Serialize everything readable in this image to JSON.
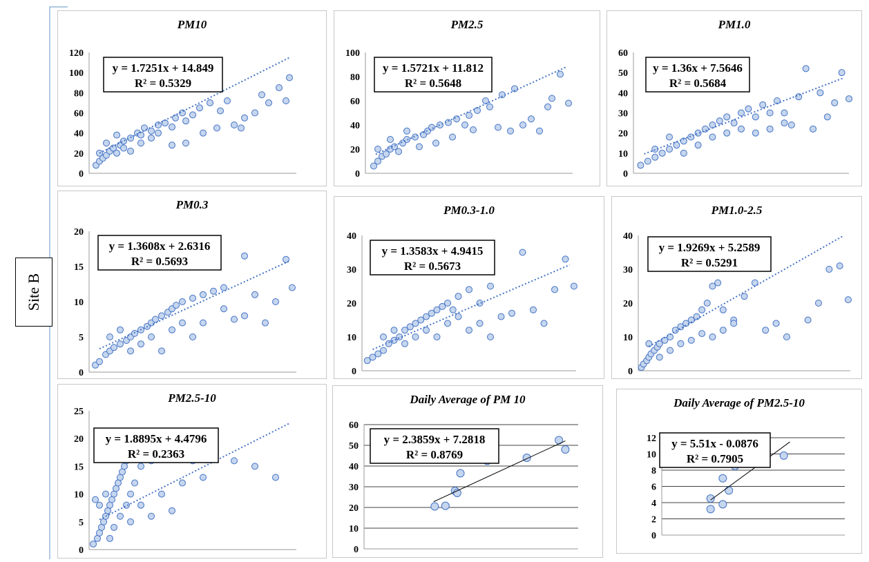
{
  "row_label": "Site B",
  "chart_data": [
    {
      "type": "scatter",
      "title": "PM10",
      "ylim": [
        0,
        120
      ],
      "yticks": [
        0,
        20,
        40,
        60,
        80,
        100,
        120
      ],
      "xlim": [
        0,
        60
      ],
      "equation": "y = 1.7251x + 14.849",
      "r2_text": "R² = 0.5329",
      "trendline": {
        "slope": 1.7251,
        "intercept": 14.849,
        "style": "dotted"
      },
      "points": [
        [
          2,
          8
        ],
        [
          3,
          12
        ],
        [
          4,
          15
        ],
        [
          5,
          18
        ],
        [
          6,
          22
        ],
        [
          7,
          25
        ],
        [
          8,
          20
        ],
        [
          9,
          28
        ],
        [
          10,
          32
        ],
        [
          12,
          35
        ],
        [
          14,
          40
        ],
        [
          15,
          38
        ],
        [
          16,
          45
        ],
        [
          18,
          42
        ],
        [
          20,
          48
        ],
        [
          22,
          50
        ],
        [
          24,
          46
        ],
        [
          25,
          55
        ],
        [
          27,
          60
        ],
        [
          28,
          52
        ],
        [
          30,
          58
        ],
        [
          32,
          65
        ],
        [
          35,
          70
        ],
        [
          38,
          62
        ],
        [
          40,
          72
        ],
        [
          42,
          48
        ],
        [
          45,
          55
        ],
        [
          50,
          78
        ],
        [
          55,
          85
        ],
        [
          58,
          95
        ],
        [
          3,
          20
        ],
        [
          5,
          30
        ],
        [
          8,
          38
        ],
        [
          10,
          25
        ],
        [
          12,
          22
        ],
        [
          15,
          30
        ],
        [
          18,
          35
        ],
        [
          20,
          40
        ],
        [
          24,
          28
        ],
        [
          28,
          30
        ],
        [
          33,
          40
        ],
        [
          37,
          45
        ],
        [
          44,
          45
        ],
        [
          48,
          60
        ],
        [
          52,
          70
        ],
        [
          57,
          72
        ]
      ]
    },
    {
      "type": "scatter",
      "title": "PM2.5",
      "ylim": [
        0,
        100
      ],
      "yticks": [
        0,
        20,
        40,
        60,
        80,
        100
      ],
      "xlim": [
        0,
        50
      ],
      "equation": "y = 1.5721x + 11.812",
      "r2_text": "R² = 0.5648",
      "trendline": {
        "slope": 1.5721,
        "intercept": 11.812,
        "style": "dotted"
      },
      "points": [
        [
          2,
          6
        ],
        [
          3,
          10
        ],
        [
          4,
          14
        ],
        [
          5,
          16
        ],
        [
          6,
          20
        ],
        [
          7,
          22
        ],
        [
          8,
          18
        ],
        [
          9,
          25
        ],
        [
          10,
          28
        ],
        [
          12,
          30
        ],
        [
          14,
          32
        ],
        [
          15,
          35
        ],
        [
          16,
          38
        ],
        [
          18,
          40
        ],
        [
          20,
          42
        ],
        [
          22,
          45
        ],
        [
          24,
          40
        ],
        [
          25,
          48
        ],
        [
          27,
          52
        ],
        [
          30,
          55
        ],
        [
          32,
          38
        ],
        [
          35,
          35
        ],
        [
          38,
          40
        ],
        [
          40,
          45
        ],
        [
          42,
          35
        ],
        [
          45,
          62
        ],
        [
          47,
          82
        ],
        [
          49,
          58
        ],
        [
          3,
          20
        ],
        [
          6,
          28
        ],
        [
          10,
          35
        ],
        [
          13,
          22
        ],
        [
          17,
          25
        ],
        [
          21,
          30
        ],
        [
          26,
          36
        ],
        [
          29,
          60
        ],
        [
          33,
          65
        ],
        [
          36,
          70
        ],
        [
          44,
          55
        ]
      ]
    },
    {
      "type": "scatter",
      "title": "PM1.0",
      "ylim": [
        0,
        60
      ],
      "yticks": [
        0,
        10,
        20,
        30,
        40,
        50,
        60
      ],
      "xlim": [
        0,
        30
      ],
      "equation": "y = 1.36x + 7.5646",
      "r2_text": "R² = 0.5684",
      "trendline": {
        "slope": 1.36,
        "intercept": 7.5646,
        "style": "dotted"
      },
      "points": [
        [
          1,
          4
        ],
        [
          2,
          6
        ],
        [
          3,
          8
        ],
        [
          4,
          10
        ],
        [
          5,
          12
        ],
        [
          6,
          14
        ],
        [
          7,
          16
        ],
        [
          8,
          18
        ],
        [
          9,
          20
        ],
        [
          10,
          22
        ],
        [
          11,
          24
        ],
        [
          12,
          26
        ],
        [
          13,
          28
        ],
        [
          14,
          25
        ],
        [
          15,
          30
        ],
        [
          16,
          32
        ],
        [
          17,
          28
        ],
        [
          18,
          34
        ],
        [
          19,
          30
        ],
        [
          20,
          36
        ],
        [
          21,
          25
        ],
        [
          22,
          24
        ],
        [
          23,
          38
        ],
        [
          24,
          52
        ],
        [
          26,
          40
        ],
        [
          28,
          35
        ],
        [
          29,
          50
        ],
        [
          30,
          37
        ],
        [
          3,
          12
        ],
        [
          5,
          18
        ],
        [
          7,
          10
        ],
        [
          9,
          14
        ],
        [
          11,
          18
        ],
        [
          13,
          20
        ],
        [
          15,
          22
        ],
        [
          17,
          20
        ],
        [
          19,
          22
        ],
        [
          21,
          30
        ],
        [
          25,
          22
        ],
        [
          27,
          28
        ]
      ]
    },
    {
      "type": "scatter",
      "title": "PM0.3",
      "ylim": [
        0,
        20
      ],
      "yticks": [
        0,
        5,
        10,
        15,
        20
      ],
      "xlim": [
        0,
        10
      ],
      "equation": "y = 1.3608x + 2.6316",
      "r2_text": "R² = 0.5693",
      "trendline": {
        "slope": 1.3608,
        "intercept": 2.6316,
        "style": "dotted"
      },
      "points": [
        [
          0.3,
          1
        ],
        [
          0.5,
          1.5
        ],
        [
          0.8,
          2.5
        ],
        [
          1,
          3
        ],
        [
          1.2,
          3.5
        ],
        [
          1.5,
          4
        ],
        [
          1.8,
          4.5
        ],
        [
          2,
          5
        ],
        [
          2.2,
          5.5
        ],
        [
          2.5,
          6
        ],
        [
          2.8,
          6.5
        ],
        [
          3,
          7
        ],
        [
          3.2,
          7.5
        ],
        [
          3.5,
          8
        ],
        [
          3.8,
          8.5
        ],
        [
          4,
          9
        ],
        [
          4.2,
          9.5
        ],
        [
          4.5,
          10
        ],
        [
          5,
          10.5
        ],
        [
          5.5,
          11
        ],
        [
          6,
          11.5
        ],
        [
          6.5,
          12
        ],
        [
          7,
          7.5
        ],
        [
          7.5,
          8
        ],
        [
          8,
          11
        ],
        [
          8.5,
          7
        ],
        [
          9,
          10
        ],
        [
          9.5,
          16
        ],
        [
          9.8,
          12
        ],
        [
          1,
          5
        ],
        [
          1.5,
          6
        ],
        [
          2,
          3
        ],
        [
          2.5,
          4
        ],
        [
          3,
          5
        ],
        [
          3.5,
          3
        ],
        [
          4,
          6
        ],
        [
          4.5,
          7
        ],
        [
          5,
          5
        ],
        [
          5.5,
          7
        ],
        [
          6.5,
          9
        ],
        [
          7.5,
          16.5
        ]
      ]
    },
    {
      "type": "scatter",
      "title": "PM0.3-1.0",
      "ylim": [
        0,
        40
      ],
      "yticks": [
        0,
        10,
        20,
        30,
        40
      ],
      "xlim": [
        0,
        20
      ],
      "equation": "y = 1.3583x + 4.9415",
      "r2_text": "R² = 0.5673",
      "trendline": {
        "slope": 1.3583,
        "intercept": 4.9415,
        "style": "dotted"
      },
      "points": [
        [
          0.5,
          3
        ],
        [
          1,
          4
        ],
        [
          1.5,
          5
        ],
        [
          2,
          6
        ],
        [
          2.5,
          8
        ],
        [
          3,
          9
        ],
        [
          3.5,
          10
        ],
        [
          4,
          12
        ],
        [
          4.5,
          13
        ],
        [
          5,
          14
        ],
        [
          5.5,
          15
        ],
        [
          6,
          16
        ],
        [
          6.5,
          17
        ],
        [
          7,
          18
        ],
        [
          7.5,
          19
        ],
        [
          8,
          20
        ],
        [
          8.5,
          18
        ],
        [
          9,
          22
        ],
        [
          10,
          24
        ],
        [
          11,
          20
        ],
        [
          12,
          25
        ],
        [
          13,
          16
        ],
        [
          14,
          17
        ],
        [
          15,
          35
        ],
        [
          16,
          18
        ],
        [
          17,
          14
        ],
        [
          18,
          24
        ],
        [
          19,
          33
        ],
        [
          19.8,
          25
        ],
        [
          2,
          10
        ],
        [
          3,
          12
        ],
        [
          4,
          8
        ],
        [
          5,
          10
        ],
        [
          6,
          12
        ],
        [
          7,
          10
        ],
        [
          8,
          14
        ],
        [
          9,
          16
        ],
        [
          10,
          12
        ],
        [
          11,
          14
        ],
        [
          12,
          10
        ]
      ]
    },
    {
      "type": "scatter",
      "title": "PM1.0-2.5",
      "ylim": [
        0,
        40
      ],
      "yticks": [
        0,
        10,
        20,
        30,
        40
      ],
      "xlim": [
        0,
        20
      ],
      "equation": "y = 1.9269x + 5.2589",
      "r2_text": "R² = 0.5291",
      "trendline": {
        "slope": 1.9269,
        "intercept": 5.2589,
        "style": "dotted"
      },
      "points": [
        [
          0.3,
          1
        ],
        [
          0.5,
          2
        ],
        [
          0.8,
          3
        ],
        [
          1,
          4
        ],
        [
          1.2,
          5
        ],
        [
          1.5,
          6
        ],
        [
          1.8,
          7
        ],
        [
          2,
          8
        ],
        [
          2.5,
          9
        ],
        [
          3,
          10
        ],
        [
          3.5,
          12
        ],
        [
          4,
          13
        ],
        [
          4.5,
          14
        ],
        [
          5,
          15
        ],
        [
          5.5,
          16
        ],
        [
          6,
          18
        ],
        [
          6.5,
          20
        ],
        [
          7,
          25
        ],
        [
          7.5,
          26
        ],
        [
          8,
          18
        ],
        [
          9,
          15
        ],
        [
          10,
          22
        ],
        [
          11,
          26
        ],
        [
          12,
          12
        ],
        [
          13,
          14
        ],
        [
          14,
          10
        ],
        [
          16,
          15
        ],
        [
          17,
          20
        ],
        [
          18,
          30
        ],
        [
          19,
          31
        ],
        [
          19.8,
          21
        ],
        [
          1,
          8
        ],
        [
          2,
          4
        ],
        [
          3,
          6
        ],
        [
          4,
          8
        ],
        [
          5,
          9
        ],
        [
          6,
          11
        ],
        [
          7,
          10
        ],
        [
          8,
          12
        ],
        [
          9,
          14
        ]
      ]
    },
    {
      "type": "scatter",
      "title": "PM2.5-10",
      "ylim": [
        0,
        25
      ],
      "yticks": [
        0,
        5,
        10,
        15,
        20,
        25
      ],
      "xlim": [
        0,
        10
      ],
      "equation": "y = 1.8895x + 4.4796",
      "r2_text": "R² = 0.2363",
      "trendline": {
        "slope": 1.8895,
        "intercept": 4.4796,
        "style": "dotted"
      },
      "points": [
        [
          0.2,
          1
        ],
        [
          0.4,
          2
        ],
        [
          0.5,
          3
        ],
        [
          0.6,
          4
        ],
        [
          0.7,
          5
        ],
        [
          0.8,
          6
        ],
        [
          0.9,
          7
        ],
        [
          1,
          8
        ],
        [
          1.1,
          9
        ],
        [
          1.2,
          10
        ],
        [
          1.3,
          11
        ],
        [
          1.4,
          12
        ],
        [
          1.5,
          13
        ],
        [
          1.6,
          14
        ],
        [
          1.7,
          15
        ],
        [
          1.8,
          16
        ],
        [
          1.9,
          17
        ],
        [
          2,
          10
        ],
        [
          2.2,
          12
        ],
        [
          2.5,
          15
        ],
        [
          3,
          16
        ],
        [
          3.5,
          10
        ],
        [
          4,
          7
        ],
        [
          4.5,
          12
        ],
        [
          5,
          16
        ],
        [
          5.5,
          13
        ],
        [
          7,
          16
        ],
        [
          8,
          15
        ],
        [
          9,
          13
        ],
        [
          0.5,
          8
        ],
        [
          0.8,
          10
        ],
        [
          1,
          2
        ],
        [
          1.2,
          4
        ],
        [
          1.5,
          6
        ],
        [
          1.8,
          8
        ],
        [
          2,
          5
        ],
        [
          2.5,
          8
        ],
        [
          3,
          6
        ],
        [
          0.3,
          9
        ]
      ]
    },
    {
      "type": "scatter",
      "title": "Daily Average of PM 10",
      "ylim": [
        0,
        60
      ],
      "yticks": [
        0,
        10,
        20,
        30,
        40,
        50,
        60
      ],
      "xlim": [
        0,
        20
      ],
      "equation": "y = 2.3859x + 7.2818",
      "r2_text": "R² = 0.8769",
      "trendline": {
        "slope": 2.3859,
        "intercept": 7.2818,
        "style": "solid",
        "x_range": [
          6.5,
          18.8
        ]
      },
      "points": [
        [
          6.6,
          20.5
        ],
        [
          7.6,
          20.8
        ],
        [
          8.5,
          28
        ],
        [
          8.7,
          27
        ],
        [
          9,
          36.5
        ],
        [
          11.5,
          42.5
        ],
        [
          15.2,
          44
        ],
        [
          18.2,
          52.5
        ],
        [
          18.8,
          48
        ]
      ]
    },
    {
      "type": "scatter",
      "title": "Daily Average of PM2.5-10",
      "ylim": [
        0,
        12
      ],
      "yticks": [
        0,
        2,
        4,
        6,
        8,
        10,
        12
      ],
      "xlim": [
        0,
        3
      ],
      "equation": "y = 5.51x - 0.0876",
      "r2_text": "R² = 0.7905",
      "trendline": {
        "slope": 5.51,
        "intercept": -0.0876,
        "style": "solid",
        "x_range": [
          0.8,
          2.1
        ]
      },
      "points": [
        [
          0.8,
          3.2
        ],
        [
          0.8,
          4.5
        ],
        [
          1,
          3.8
        ],
        [
          1,
          7
        ],
        [
          1.1,
          5.5
        ],
        [
          1.2,
          8.5
        ],
        [
          2,
          9.8
        ]
      ]
    }
  ]
}
